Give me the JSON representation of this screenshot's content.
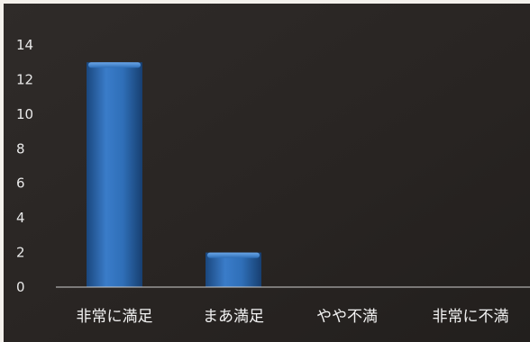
{
  "chart_data": {
    "type": "bar",
    "categories": [
      "非常に満足",
      "まあ満足",
      "やや不満",
      "非常に不満"
    ],
    "values": [
      13,
      2,
      0,
      0
    ],
    "ylim": [
      0,
      14
    ],
    "yticks": [
      0,
      2,
      4,
      6,
      8,
      10,
      12,
      14
    ],
    "title": "",
    "xlabel": "",
    "ylabel": "",
    "grid": false,
    "legend": "none"
  },
  "colors": {
    "background": "#2a2624",
    "bar_light": "#4f8fd6",
    "bar_mid": "#2f6fb8",
    "bar_dark": "#1a477e",
    "axis": "#cfcfcf",
    "text": "#eeeeee"
  }
}
